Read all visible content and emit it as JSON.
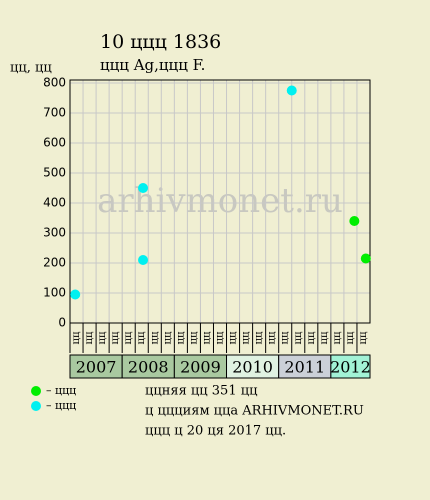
{
  "chart_data": {
    "type": "scatter",
    "title": "10 ццц 1836",
    "subtitle": "ццц Ag,ццц F.",
    "y_label": "цц, цц",
    "watermark": "arhivmonet.ru",
    "xlim": [
      2007,
      2012.75
    ],
    "ylim": [
      0,
      810
    ],
    "yticks": [
      0,
      100,
      200,
      300,
      400,
      500,
      600,
      700,
      800
    ],
    "grid": true,
    "quarters": [
      "цц",
      "цц",
      "цц",
      "цц",
      "цц",
      "цц",
      "цц",
      "цц",
      "цц",
      "цц",
      "цц",
      "цц",
      "цц",
      "цц",
      "цц",
      "цц",
      "цц",
      "цц",
      "цц",
      "цц",
      "цц",
      "цц",
      "цц"
    ],
    "years": [
      {
        "label": "2007",
        "color": "#a9c9a0"
      },
      {
        "label": "2008",
        "color": "#a9c9a0"
      },
      {
        "label": "2009",
        "color": "#a9c9a0"
      },
      {
        "label": "2010",
        "color": "#e0f2e2"
      },
      {
        "label": "2011",
        "color": "#cbd0d8"
      },
      {
        "label": "2012",
        "color": "#a2f2d6"
      }
    ],
    "series": [
      {
        "name": "– ццц",
        "color": "#00ee00",
        "x": [
          2012.45,
          2012.67
        ],
        "values": [
          340,
          215
        ]
      },
      {
        "name": "– ццц",
        "color": "#00f0f0",
        "x": [
          2007.1,
          2008.4,
          2008.4,
          2011.25
        ],
        "values": [
          95,
          450,
          210,
          775
        ]
      }
    ],
    "notes": [
      "ццняя цц 351 цц",
      "ц ццциям ццa ARHIVMONET.RU",
      "ццц ц 20 ця 2017 цц."
    ]
  }
}
